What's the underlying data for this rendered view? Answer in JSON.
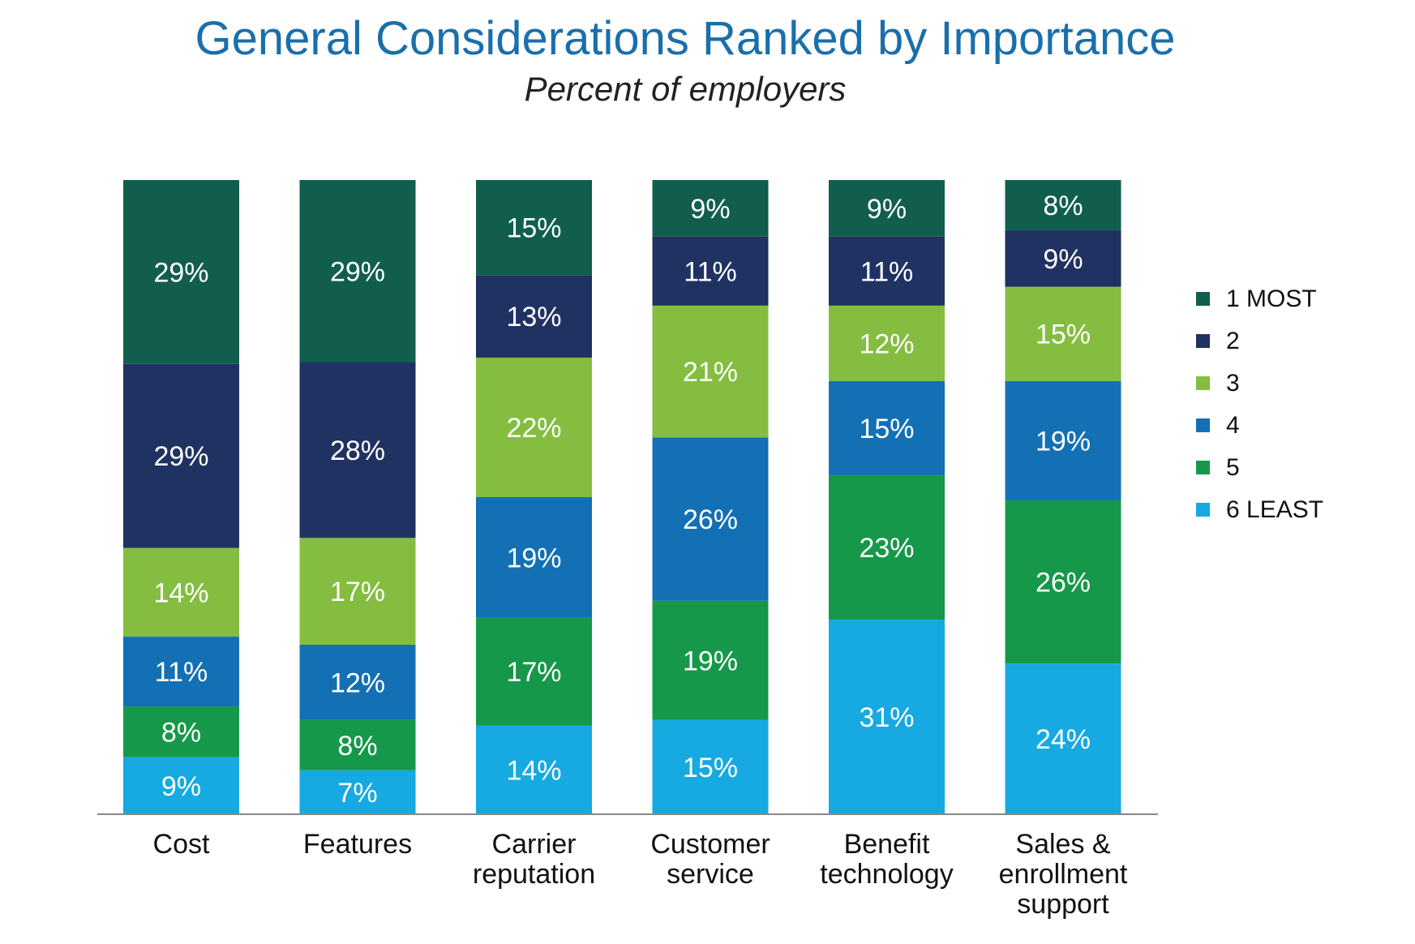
{
  "chart_data": {
    "type": "bar",
    "stacked": true,
    "title": "General Considerations Ranked by Importance",
    "subtitle": "Percent of employers",
    "categories": [
      "Cost",
      "Features",
      "Carrier reputation",
      "Customer service",
      "Benefit technology",
      "Sales & enrollment support"
    ],
    "category_lines": [
      [
        "Cost"
      ],
      [
        "Features"
      ],
      [
        "Carrier",
        "reputation"
      ],
      [
        "Customer",
        "service"
      ],
      [
        "Benefit",
        "technology"
      ],
      [
        "Sales &",
        "enrollment",
        "support"
      ]
    ],
    "series": [
      {
        "name": "1 MOST",
        "color": "#115e4f",
        "values": [
          29,
          29,
          15,
          9,
          9,
          8
        ]
      },
      {
        "name": "2",
        "color": "#203262",
        "values": [
          29,
          28,
          13,
          11,
          11,
          9
        ]
      },
      {
        "name": "3",
        "color": "#85bd41",
        "values": [
          14,
          17,
          22,
          21,
          12,
          15
        ]
      },
      {
        "name": "4",
        "color": "#1470b4",
        "values": [
          11,
          12,
          19,
          26,
          15,
          19
        ]
      },
      {
        "name": "5",
        "color": "#16984a",
        "values": [
          8,
          8,
          17,
          19,
          23,
          26
        ]
      },
      {
        "name": "6 LEAST",
        "color": "#17a9e1",
        "values": [
          9,
          7,
          14,
          15,
          31,
          24
        ]
      }
    ],
    "value_suffix": "%",
    "legend_position": "right",
    "ylim": [
      0,
      100
    ],
    "grid": false
  }
}
